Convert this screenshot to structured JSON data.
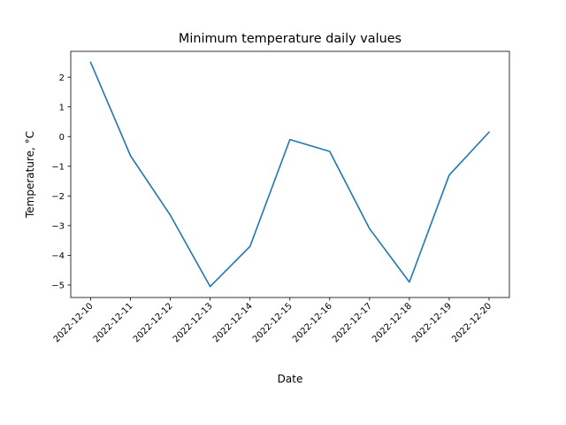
{
  "chart_data": {
    "type": "line",
    "title": "Minimum temperature daily values",
    "xlabel": "Date",
    "ylabel": "Temperature, °C",
    "x": [
      "2022-12-10",
      "2022-12-11",
      "2022-12-12",
      "2022-12-13",
      "2022-12-14",
      "2022-12-15",
      "2022-12-16",
      "2022-12-17",
      "2022-12-18",
      "2022-12-19",
      "2022-12-20"
    ],
    "series": [
      {
        "values": [
          2.5,
          -0.65,
          -2.65,
          -5.05,
          -3.7,
          -0.1,
          -0.5,
          -3.1,
          -4.9,
          -1.3,
          0.15
        ],
        "color": "#1f77b4"
      }
    ],
    "yticks": [
      "−5",
      "−4",
      "−3",
      "−2",
      "−1",
      "0",
      "1",
      "2"
    ],
    "ylim": [
      -5.42,
      2.87
    ],
    "grid": false,
    "legend": "none"
  }
}
